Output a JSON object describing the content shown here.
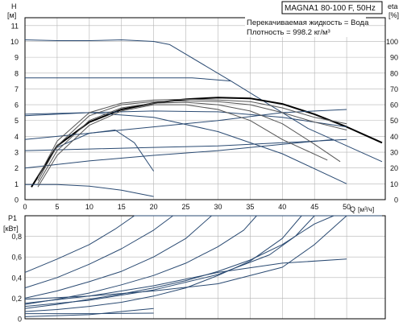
{
  "header": {
    "model": "MAGNA1 80-100 F, 50Hz",
    "fluid": "Перекачиваемая жидкость = Вода",
    "density": "Плотность = 998.2 кг/м³"
  },
  "chart_data": [
    {
      "type": "line",
      "title": "MAGNA1 80-100 F, 50Hz",
      "ylabel": "H",
      "yunit": "[м]",
      "y2label": "eta",
      "y2unit": "[%]",
      "xlabel": "Q",
      "xunit": "[м³/ч]",
      "xlim": [
        0,
        56
      ],
      "ylim": [
        0,
        11.5
      ],
      "y2lim": [
        0,
        115
      ],
      "xticks": [
        0,
        5,
        10,
        15,
        20,
        25,
        30,
        35,
        40,
        45,
        50
      ],
      "yticks": [
        0,
        1,
        2,
        3,
        4,
        5,
        6,
        7,
        8,
        9,
        10,
        11
      ],
      "y2ticks": [
        0,
        10,
        20,
        30,
        40,
        50,
        60,
        70,
        80,
        90,
        100
      ],
      "grid": true,
      "series": [
        {
          "role": "H",
          "color": "#2a4a72",
          "width": 1,
          "points": [
            [
              0,
              10.1
            ],
            [
              5,
              10.05
            ],
            [
              10,
              10.05
            ],
            [
              15,
              10.1
            ],
            [
              20,
              10
            ],
            [
              22.5,
              9.8
            ],
            [
              32,
              7.5
            ],
            [
              44,
              4.5
            ],
            [
              55.5,
              2.4
            ]
          ]
        },
        {
          "role": "H",
          "color": "#2a4a72",
          "width": 1,
          "points": [
            [
              0,
              7.7
            ],
            [
              10,
              7.7
            ],
            [
              20,
              7.7
            ],
            [
              26,
              7.7
            ],
            [
              32,
              7.5
            ]
          ]
        },
        {
          "role": "H",
          "color": "#000000",
          "width": 2,
          "points": [
            [
              1,
              0.8
            ],
            [
              5,
              3.4
            ],
            [
              10,
              4.9
            ],
            [
              15,
              5.7
            ],
            [
              20,
              6.1
            ],
            [
              25,
              6.35
            ],
            [
              30,
              6.45
            ],
            [
              35,
              6.4
            ],
            [
              40,
              6.05
            ],
            [
              45,
              5.4
            ],
            [
              50,
              4.6
            ],
            [
              55.5,
              3.6
            ]
          ]
        },
        {
          "role": "H",
          "color": "#2a4a72",
          "width": 1,
          "points": [
            [
              0,
              5.3
            ],
            [
              10,
              5.5
            ],
            [
              20,
              5.6
            ],
            [
              30,
              5.55
            ],
            [
              40,
              5.2
            ],
            [
              50,
              4.6
            ]
          ]
        },
        {
          "role": "H",
          "color": "#2a4a72",
          "width": 1,
          "points": [
            [
              0,
              3.8
            ],
            [
              10,
              4.2
            ],
            [
              20,
              4.6
            ],
            [
              30,
              5.0
            ],
            [
              40,
              5.5
            ],
            [
              50,
              5.7
            ]
          ]
        },
        {
          "role": "H",
          "color": "#2a4a72",
          "width": 1,
          "points": [
            [
              0,
              3.1
            ],
            [
              10,
              3.2
            ],
            [
              20,
              3.3
            ],
            [
              30,
              3.4
            ],
            [
              40,
              3.6
            ],
            [
              50,
              3.8
            ]
          ]
        },
        {
          "role": "H",
          "color": "#2a4a72",
          "width": 1,
          "points": [
            [
              0,
              2.0
            ],
            [
              10,
              2.45
            ],
            [
              20,
              2.8
            ],
            [
              30,
              3.1
            ],
            [
              40,
              3.5
            ],
            [
              48,
              3.8
            ]
          ]
        },
        {
          "role": "H",
          "color": "#2a4a72",
          "width": 1,
          "points": [
            [
              0,
              5.4
            ],
            [
              10,
              5.5
            ],
            [
              20,
              5.2
            ],
            [
              30,
              4.3
            ],
            [
              40,
              2.9
            ],
            [
              50,
              1.0
            ]
          ]
        },
        {
          "role": "H",
          "color": "#2a4a72",
          "width": 1,
          "points": [
            [
              0,
              0.95
            ],
            [
              5,
              0.95
            ],
            [
              10,
              0.85
            ],
            [
              15,
              0.6
            ],
            [
              20,
              0.2
            ]
          ]
        },
        {
          "role": "H",
          "color": "#2a4a72",
          "width": 1,
          "points": [
            [
              5,
              3.3
            ],
            [
              10,
              4.2
            ],
            [
              14,
              4.4
            ],
            [
              17,
              3.6
            ],
            [
              20,
              1.8
            ]
          ]
        },
        {
          "role": "eta",
          "color": "#555555",
          "width": 1,
          "points": [
            [
              2,
              8
            ],
            [
              5,
              28
            ],
            [
              10,
              47
            ],
            [
              15,
              56
            ],
            [
              20,
              60
            ],
            [
              25,
              60
            ],
            [
              30,
              57
            ],
            [
              35,
              50
            ],
            [
              40,
              38
            ],
            [
              47,
              25
            ]
          ]
        },
        {
          "role": "eta",
          "color": "#555555",
          "width": 1,
          "points": [
            [
              2,
              10
            ],
            [
              5,
              31
            ],
            [
              10,
              50
            ],
            [
              15,
              58
            ],
            [
              20,
              61
            ],
            [
              25,
              61.5
            ],
            [
              30,
              60
            ],
            [
              35,
              56
            ],
            [
              40,
              48
            ],
            [
              45,
              35
            ],
            [
              49,
              24
            ]
          ]
        },
        {
          "role": "eta",
          "color": "#555555",
          "width": 1,
          "points": [
            [
              2,
              12
            ],
            [
              5,
              34
            ],
            [
              10,
              53
            ],
            [
              15,
              60
            ],
            [
              20,
              62
            ],
            [
              25,
              62.5
            ],
            [
              30,
              62
            ],
            [
              35,
              60
            ],
            [
              40,
              55
            ],
            [
              45,
              49
            ],
            [
              50,
              44
            ]
          ]
        },
        {
          "role": "eta",
          "color": "#555555",
          "width": 1,
          "points": [
            [
              2,
              14
            ],
            [
              5,
              37
            ],
            [
              10,
              55
            ],
            [
              15,
              61
            ],
            [
              20,
              63
            ],
            [
              25,
              63.5
            ],
            [
              30,
              63
            ],
            [
              35,
              62
            ],
            [
              40,
              58
            ],
            [
              45,
              52
            ],
            [
              50,
              48
            ]
          ]
        }
      ]
    },
    {
      "type": "line",
      "ylabel": "P1",
      "yunit": "[кВт]",
      "xlim": [
        0,
        56
      ],
      "ylim": [
        0,
        1.0
      ],
      "yticks": [
        0,
        0.2,
        0.4,
        0.6,
        0.8
      ],
      "yticklabels": [
        "0",
        "0,2",
        "0,4",
        "0,6",
        "0,8"
      ],
      "grid": true,
      "series": [
        {
          "color": "#2a4a72",
          "width": 1,
          "points": [
            [
              0,
              0.45
            ],
            [
              5,
              0.58
            ],
            [
              10,
              0.72
            ],
            [
              14,
              0.87
            ],
            [
              17,
              1.0
            ],
            [
              55.5,
              1.0
            ]
          ]
        },
        {
          "color": "#2a4a72",
          "width": 1,
          "points": [
            [
              0,
              0.3
            ],
            [
              5,
              0.4
            ],
            [
              10,
              0.53
            ],
            [
              15,
              0.68
            ],
            [
              20,
              0.86
            ],
            [
              23,
              1.0
            ]
          ]
        },
        {
          "color": "#2a4a72",
          "width": 1,
          "points": [
            [
              0,
              0.2
            ],
            [
              5,
              0.27
            ],
            [
              10,
              0.36
            ],
            [
              15,
              0.46
            ],
            [
              20,
              0.6
            ],
            [
              25,
              0.78
            ],
            [
              29,
              1.0
            ]
          ]
        },
        {
          "color": "#2a4a72",
          "width": 1,
          "points": [
            [
              0,
              0.14
            ],
            [
              5,
              0.19
            ],
            [
              10,
              0.25
            ],
            [
              15,
              0.33
            ],
            [
              20,
              0.42
            ],
            [
              25,
              0.54
            ],
            [
              30,
              0.7
            ],
            [
              34,
              0.86
            ],
            [
              36,
              1.0
            ]
          ]
        },
        {
          "color": "#2a4a72",
          "width": 1,
          "points": [
            [
              0,
              0.1
            ],
            [
              5,
              0.14
            ],
            [
              10,
              0.19
            ],
            [
              15,
              0.24
            ],
            [
              20,
              0.3
            ],
            [
              25,
              0.37
            ],
            [
              30,
              0.46
            ],
            [
              35,
              0.57
            ],
            [
              40,
              0.72
            ],
            [
              45,
              0.92
            ],
            [
              48,
              1.0
            ]
          ]
        },
        {
          "color": "#2a4a72",
          "width": 1,
          "points": [
            [
              0,
              0.12
            ],
            [
              10,
              0.18
            ],
            [
              20,
              0.28
            ],
            [
              30,
              0.43
            ],
            [
              38,
              0.62
            ],
            [
              42,
              0.8
            ],
            [
              45,
              1.0
            ]
          ]
        },
        {
          "color": "#2a4a72",
          "width": 1,
          "points": [
            [
              0,
              0.15
            ],
            [
              10,
              0.22
            ],
            [
              20,
              0.32
            ],
            [
              30,
              0.45
            ],
            [
              40,
              0.54
            ],
            [
              50,
              0.58
            ]
          ]
        },
        {
          "color": "#2a4a72",
          "width": 1,
          "points": [
            [
              0,
              0.19
            ],
            [
              10,
              0.22
            ],
            [
              20,
              0.27
            ],
            [
              30,
              0.34
            ],
            [
              40,
              0.5
            ],
            [
              45,
              0.72
            ],
            [
              50,
              1.0
            ]
          ]
        },
        {
          "color": "#2a4a72",
          "width": 1,
          "points": [
            [
              0,
              0.07
            ],
            [
              5,
              0.09
            ],
            [
              10,
              0.12
            ],
            [
              15,
              0.16
            ],
            [
              20,
              0.22
            ],
            [
              25,
              0.3
            ],
            [
              30,
              0.42
            ],
            [
              35,
              0.56
            ],
            [
              40,
              0.78
            ],
            [
              43,
              1.0
            ]
          ]
        },
        {
          "color": "#2a4a72",
          "width": 1,
          "points": [
            [
              0,
              0.05
            ],
            [
              10,
              0.05
            ],
            [
              20,
              0.055
            ]
          ]
        },
        {
          "color": "#2a4a72",
          "width": 1,
          "points": [
            [
              0,
              0.02
            ],
            [
              10,
              0.04
            ],
            [
              15,
              0.07
            ],
            [
              20,
              0.1
            ]
          ]
        }
      ]
    }
  ]
}
